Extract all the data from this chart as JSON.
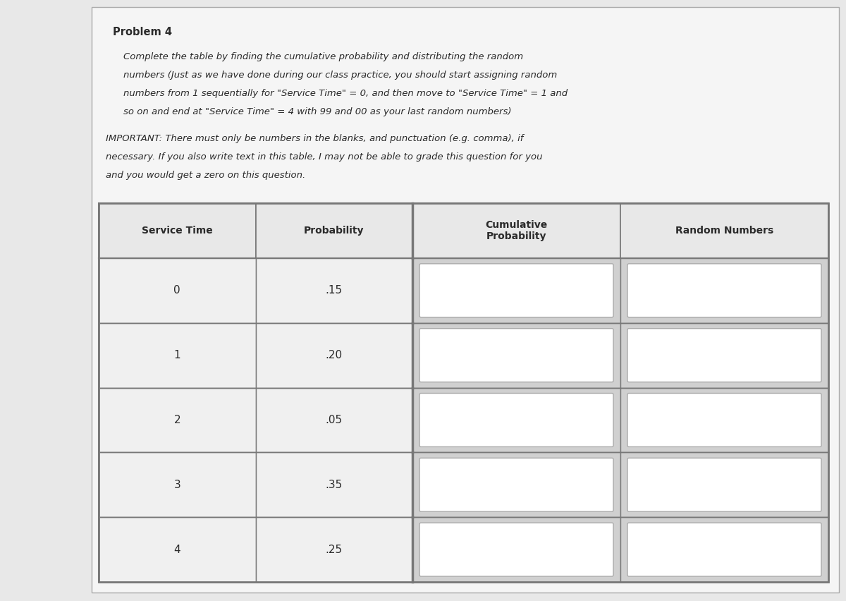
{
  "title": "Problem 4",
  "desc_lines": [
    "Complete the table by finding the cumulative probability and distributing the random",
    "numbers (Just as we have done during our class practice, you should start assigning random",
    "numbers from 1 sequentially for \"Service Time\" = 0, and then move to \"Service Time\" = 1 and",
    "so on and end at \"Service Time\" = 4 with 99 and 00 as your last random numbers)"
  ],
  "important_lines": [
    "IMPORTANT: There must only be numbers in the blanks, and punctuation (e.g. comma), if",
    "necessary. If you also write text in this table, I may not be able to grade this question for you",
    "and you would get a zero on this question."
  ],
  "col_headers": [
    "Service Time",
    "Probability",
    "Cumulative\nProbability",
    "Random Numbers"
  ],
  "service_times": [
    "0",
    "1",
    "2",
    "3",
    "4"
  ],
  "probabilities": [
    ".15",
    ".20",
    ".05",
    ".35",
    ".25"
  ],
  "page_bg": "#e8e8e8",
  "white_area_bg": "#f5f5f5",
  "cell_gray_bg": "#d0d0d0",
  "cell_white_bg": "#f0f0f0",
  "input_box_bg": "#ffffff",
  "header_bg": "#e8e8e8",
  "border_dark": "#777777",
  "border_light": "#999999",
  "text_color": "#2a2a2a",
  "title_fontsize": 10.5,
  "text_fontsize": 9.5,
  "table_fontsize": 10
}
